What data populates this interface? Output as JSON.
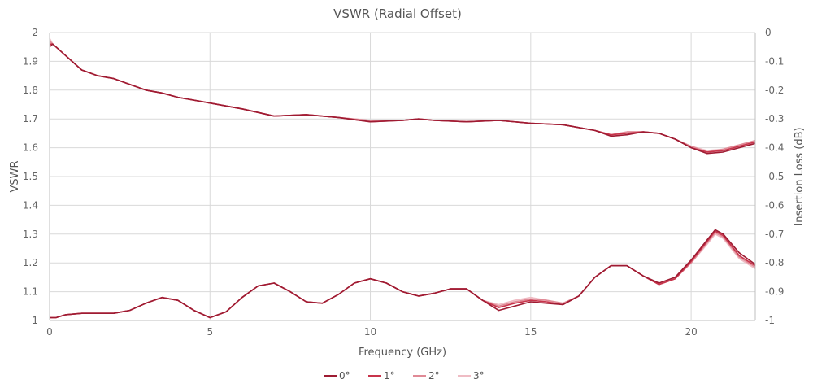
{
  "chart_data": {
    "type": "line",
    "title": "VSWR (Radial Offset)",
    "xlabel": "Frequency (GHz)",
    "ylabel": "VSWR",
    "y2label": "Insertion Loss (dB)",
    "xlim": [
      0,
      22
    ],
    "ylim": [
      1,
      2
    ],
    "y2lim": [
      -1,
      0
    ],
    "x_ticks": [
      0,
      5,
      10,
      15,
      20
    ],
    "y_ticks": [
      1,
      1.1,
      1.2,
      1.3,
      1.4,
      1.5,
      1.6,
      1.7,
      1.8,
      1.9,
      2
    ],
    "y_tick_labels": [
      "1",
      "1.1",
      "1.2",
      "1.3",
      "1.4",
      "1.5",
      "1.6",
      "1.7",
      "1.8",
      "1.9",
      "2"
    ],
    "y2_ticks": [
      -1,
      -0.9,
      -0.8,
      -0.7,
      -0.6,
      -0.5,
      -0.4,
      -0.3,
      -0.2,
      -0.1,
      0
    ],
    "y2_tick_labels": [
      "-1",
      "-0.9",
      "-0.8",
      "-0.7",
      "-0.6",
      "-0.5",
      "-0.4",
      "-0.3",
      "-0.2",
      "-0.1",
      "0"
    ],
    "grid": true,
    "legend_position": "bottom-center",
    "series": [
      {
        "name": "0°",
        "color": "#9e1b32",
        "vswr": {
          "x": [
            0,
            0.05,
            0.2,
            0.5,
            1,
            1.5,
            2,
            2.5,
            3,
            3.5,
            4,
            4.5,
            5,
            5.5,
            6,
            6.5,
            7,
            7.5,
            8,
            8.5,
            9,
            9.5,
            10,
            10.5,
            11,
            11.5,
            12,
            12.5,
            13,
            13.5,
            14,
            14.5,
            15,
            15.5,
            16,
            16.5,
            17,
            17.5,
            18,
            18.5,
            19,
            19.5,
            20,
            20.5,
            20.75,
            21,
            21.5,
            22
          ],
          "y": [
            1.01,
            1.01,
            1.01,
            1.02,
            1.025,
            1.025,
            1.025,
            1.035,
            1.06,
            1.08,
            1.07,
            1.035,
            1.01,
            1.03,
            1.08,
            1.12,
            1.13,
            1.1,
            1.065,
            1.06,
            1.09,
            1.13,
            1.145,
            1.13,
            1.1,
            1.085,
            1.095,
            1.11,
            1.11,
            1.07,
            1.035,
            1.05,
            1.065,
            1.06,
            1.055,
            1.085,
            1.15,
            1.19,
            1.19,
            1.155,
            1.13,
            1.15,
            1.21,
            1.28,
            1.315,
            1.3,
            1.235,
            1.195
          ]
        },
        "insertion_loss": {
          "x": [
            0,
            0.1,
            0.3,
            0.5,
            1,
            1.5,
            2,
            2.5,
            3,
            3.5,
            4,
            5,
            6,
            7,
            8,
            9,
            10,
            11,
            11.5,
            12,
            13,
            14,
            15,
            16,
            17,
            17.5,
            18,
            18.5,
            19,
            19.5,
            20,
            20.5,
            21,
            21.5,
            22
          ],
          "y": [
            -0.05,
            -0.04,
            -0.06,
            -0.08,
            -0.13,
            -0.15,
            -0.16,
            -0.18,
            -0.2,
            -0.21,
            -0.225,
            -0.245,
            -0.265,
            -0.29,
            -0.285,
            -0.295,
            -0.31,
            -0.305,
            -0.3,
            -0.305,
            -0.31,
            -0.305,
            -0.315,
            -0.32,
            -0.34,
            -0.36,
            -0.355,
            -0.345,
            -0.35,
            -0.37,
            -0.4,
            -0.42,
            -0.415,
            -0.4,
            -0.385
          ]
        }
      },
      {
        "name": "1°",
        "color": "#c8344b",
        "vswr": {
          "x": [
            0,
            0.05,
            0.2,
            0.5,
            1,
            1.5,
            2,
            2.5,
            3,
            3.5,
            4,
            4.5,
            5,
            5.5,
            6,
            6.5,
            7,
            7.5,
            8,
            8.5,
            9,
            9.5,
            10,
            10.5,
            11,
            11.5,
            12,
            12.5,
            13,
            13.5,
            14,
            14.5,
            15,
            15.5,
            16,
            16.5,
            17,
            17.5,
            18,
            18.5,
            19,
            19.5,
            20,
            20.5,
            20.75,
            21,
            21.5,
            22
          ],
          "y": [
            1.01,
            1.01,
            1.01,
            1.02,
            1.025,
            1.025,
            1.025,
            1.035,
            1.06,
            1.08,
            1.07,
            1.035,
            1.01,
            1.03,
            1.08,
            1.12,
            1.13,
            1.1,
            1.065,
            1.06,
            1.09,
            1.13,
            1.145,
            1.13,
            1.1,
            1.085,
            1.095,
            1.11,
            1.11,
            1.07,
            1.045,
            1.06,
            1.07,
            1.065,
            1.055,
            1.085,
            1.15,
            1.19,
            1.19,
            1.155,
            1.125,
            1.145,
            1.205,
            1.275,
            1.31,
            1.295,
            1.225,
            1.19
          ]
        },
        "insertion_loss": {
          "x": [
            0,
            0.1,
            0.3,
            0.5,
            1,
            1.5,
            2,
            2.5,
            3,
            3.5,
            4,
            5,
            6,
            7,
            8,
            9,
            10,
            11,
            11.5,
            12,
            13,
            14,
            15,
            16,
            17,
            17.5,
            18,
            18.5,
            19,
            19.5,
            20,
            20.5,
            21,
            21.5,
            22
          ],
          "y": [
            -0.04,
            -0.04,
            -0.06,
            -0.08,
            -0.13,
            -0.15,
            -0.16,
            -0.18,
            -0.2,
            -0.21,
            -0.225,
            -0.245,
            -0.265,
            -0.29,
            -0.285,
            -0.295,
            -0.31,
            -0.305,
            -0.3,
            -0.305,
            -0.31,
            -0.305,
            -0.315,
            -0.32,
            -0.34,
            -0.355,
            -0.35,
            -0.345,
            -0.35,
            -0.37,
            -0.4,
            -0.415,
            -0.41,
            -0.395,
            -0.38
          ]
        }
      },
      {
        "name": "2°",
        "color": "#e08a96",
        "vswr": {
          "x": [
            0,
            0.05,
            0.2,
            0.5,
            1,
            1.5,
            2,
            2.5,
            3,
            3.5,
            4,
            4.5,
            5,
            5.5,
            6,
            6.5,
            7,
            7.5,
            8,
            8.5,
            9,
            9.5,
            10,
            10.5,
            11,
            11.5,
            12,
            12.5,
            13,
            13.5,
            14,
            14.5,
            15,
            15.5,
            16,
            16.5,
            17,
            17.5,
            18,
            18.5,
            19,
            19.5,
            20,
            20.5,
            20.75,
            21,
            21.5,
            22
          ],
          "y": [
            1.01,
            1.01,
            1.01,
            1.02,
            1.025,
            1.025,
            1.025,
            1.035,
            1.06,
            1.08,
            1.07,
            1.035,
            1.01,
            1.03,
            1.08,
            1.12,
            1.13,
            1.1,
            1.065,
            1.06,
            1.09,
            1.13,
            1.145,
            1.13,
            1.1,
            1.085,
            1.095,
            1.11,
            1.11,
            1.07,
            1.05,
            1.065,
            1.075,
            1.07,
            1.06,
            1.085,
            1.15,
            1.19,
            1.19,
            1.155,
            1.125,
            1.145,
            1.2,
            1.27,
            1.305,
            1.29,
            1.22,
            1.185
          ]
        },
        "insertion_loss": {
          "x": [
            0,
            0.1,
            0.3,
            0.5,
            1,
            1.5,
            2,
            2.5,
            3,
            3.5,
            4,
            5,
            6,
            7,
            8,
            9,
            10,
            11,
            11.5,
            12,
            13,
            14,
            15,
            16,
            17,
            17.5,
            18,
            18.5,
            19,
            19.5,
            20,
            20.5,
            21,
            21.5,
            22
          ],
          "y": [
            -0.03,
            -0.04,
            -0.06,
            -0.08,
            -0.13,
            -0.15,
            -0.16,
            -0.18,
            -0.2,
            -0.21,
            -0.225,
            -0.245,
            -0.265,
            -0.29,
            -0.285,
            -0.295,
            -0.305,
            -0.305,
            -0.3,
            -0.305,
            -0.31,
            -0.305,
            -0.315,
            -0.32,
            -0.34,
            -0.355,
            -0.345,
            -0.345,
            -0.35,
            -0.37,
            -0.395,
            -0.415,
            -0.405,
            -0.39,
            -0.375
          ]
        }
      },
      {
        "name": "3°",
        "color": "#efbcc4",
        "vswr": {
          "x": [
            0,
            0.05,
            0.2,
            0.5,
            1,
            1.5,
            2,
            2.5,
            3,
            3.5,
            4,
            4.5,
            5,
            5.5,
            6,
            6.5,
            7,
            7.5,
            8,
            8.5,
            9,
            9.5,
            10,
            10.5,
            11,
            11.5,
            12,
            12.5,
            13,
            13.5,
            14,
            14.5,
            15,
            15.5,
            16,
            16.5,
            17,
            17.5,
            18,
            18.5,
            19,
            19.5,
            20,
            20.5,
            20.75,
            21,
            21.5,
            22
          ],
          "y": [
            1.01,
            1.01,
            1.01,
            1.02,
            1.025,
            1.025,
            1.025,
            1.035,
            1.06,
            1.08,
            1.07,
            1.035,
            1.01,
            1.03,
            1.08,
            1.12,
            1.13,
            1.1,
            1.065,
            1.06,
            1.09,
            1.13,
            1.145,
            1.13,
            1.1,
            1.085,
            1.095,
            1.11,
            1.11,
            1.07,
            1.055,
            1.07,
            1.08,
            1.07,
            1.06,
            1.085,
            1.15,
            1.19,
            1.19,
            1.155,
            1.125,
            1.145,
            1.2,
            1.265,
            1.3,
            1.285,
            1.215,
            1.18
          ]
        },
        "insertion_loss": {
          "x": [
            0,
            0.1,
            0.3,
            0.5,
            1,
            1.5,
            2,
            2.5,
            3,
            3.5,
            4,
            5,
            6,
            7,
            8,
            9,
            10,
            11,
            11.5,
            12,
            13,
            14,
            15,
            16,
            17,
            17.5,
            18,
            18.5,
            19,
            19.5,
            20,
            20.5,
            21,
            21.5,
            22
          ],
          "y": [
            -0.02,
            -0.04,
            -0.06,
            -0.08,
            -0.13,
            -0.15,
            -0.16,
            -0.18,
            -0.2,
            -0.21,
            -0.225,
            -0.245,
            -0.265,
            -0.29,
            -0.285,
            -0.295,
            -0.305,
            -0.305,
            -0.3,
            -0.305,
            -0.31,
            -0.305,
            -0.315,
            -0.32,
            -0.34,
            -0.355,
            -0.345,
            -0.345,
            -0.35,
            -0.37,
            -0.395,
            -0.41,
            -0.405,
            -0.39,
            -0.375
          ]
        }
      }
    ]
  }
}
